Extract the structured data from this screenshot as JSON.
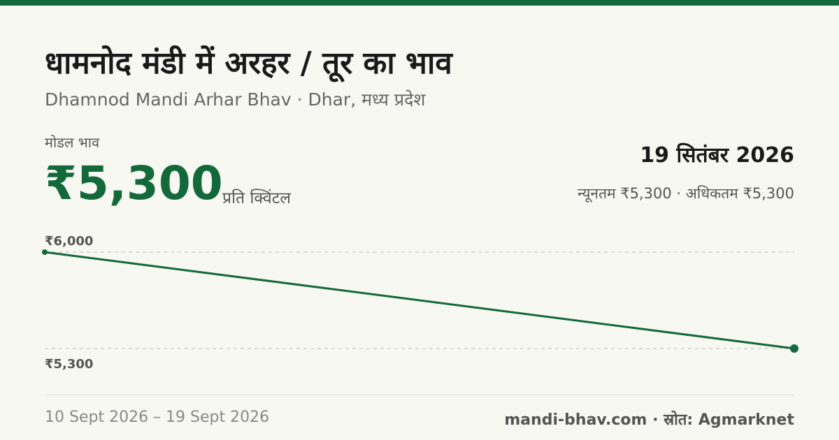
{
  "header": {
    "title": "धामनोद मंडी में अरहर / तूर का भाव",
    "subtitle": "Dhamnod Mandi Arhar Bhav · Dhar, मध्य प्रदेश"
  },
  "price": {
    "label": "मोडल भाव",
    "value": "₹5,300",
    "unit": "प्रति क्विंटल",
    "date": "19 सितंबर 2026",
    "range": "न्यूनतम ₹5,300 · अधिकतम ₹5,300"
  },
  "chart_data": {
    "type": "line",
    "values": [
      6000,
      5300
    ],
    "color": "#13693a",
    "ylim": [
      5300,
      6000
    ],
    "yticks": [
      {
        "value": 6000,
        "label": "₹6,000"
      },
      {
        "value": 5300,
        "label": "₹5,300"
      }
    ],
    "grid": true
  },
  "footer": {
    "dates": "10 Sept 2026 – 19 Sept 2026",
    "source": "mandi-bhav.com · स्रोत: Agmarknet"
  }
}
